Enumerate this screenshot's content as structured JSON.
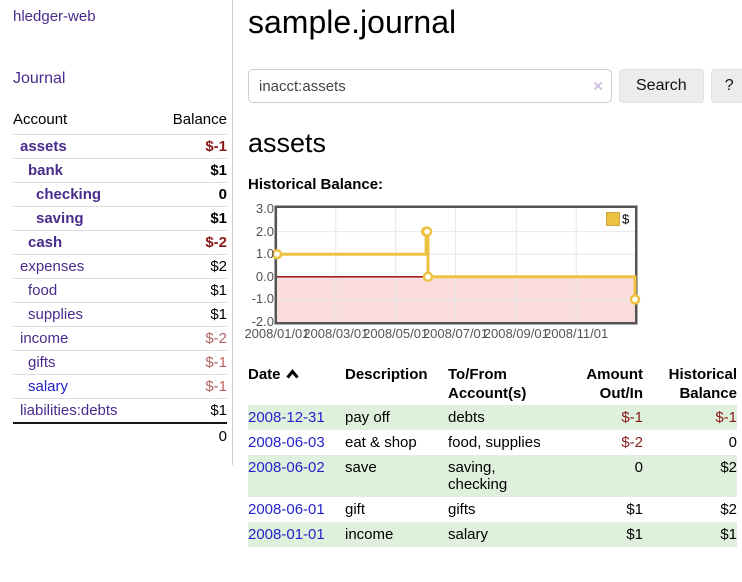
{
  "app": {
    "title_link": "hledger-web"
  },
  "sidebar": {
    "journal_link": "Journal",
    "accounts": {
      "account_header": "Account",
      "balance_header": "Balance",
      "rows": [
        {
          "name": "assets",
          "indent": 1,
          "bold": true,
          "link_style": "purple",
          "balance": "$-1",
          "balance_style": "negative",
          "balance_bold": true
        },
        {
          "name": "bank",
          "indent": 2,
          "bold": true,
          "link_style": "purple",
          "balance": "$1",
          "balance_style": "normal",
          "balance_bold": true
        },
        {
          "name": "checking",
          "indent": 3,
          "bold": true,
          "link_style": "purple",
          "balance": "0",
          "balance_style": "normal",
          "balance_bold": true
        },
        {
          "name": "saving",
          "indent": 3,
          "bold": true,
          "link_style": "purple",
          "balance": "$1",
          "balance_style": "normal",
          "balance_bold": true
        },
        {
          "name": "cash",
          "indent": 2,
          "bold": true,
          "link_style": "purple",
          "balance": "$-2",
          "balance_style": "negative",
          "balance_bold": true
        },
        {
          "name": "expenses",
          "indent": 1,
          "bold": false,
          "link_style": "purple",
          "balance": "$2",
          "balance_style": "normal",
          "balance_bold": false
        },
        {
          "name": "food",
          "indent": 2,
          "bold": false,
          "link_style": "purple",
          "balance": "$1",
          "balance_style": "normal",
          "balance_bold": false
        },
        {
          "name": "supplies",
          "indent": 2,
          "bold": false,
          "link_style": "purple",
          "balance": "$1",
          "balance_style": "normal",
          "balance_bold": false
        },
        {
          "name": "income",
          "indent": 1,
          "bold": false,
          "link_style": "purple",
          "balance": "$-2",
          "balance_style": "negative-muted",
          "balance_bold": false
        },
        {
          "name": "gifts",
          "indent": 2,
          "bold": false,
          "link_style": "purple",
          "balance": "$-1",
          "balance_style": "negative-muted",
          "balance_bold": false
        },
        {
          "name": "salary",
          "indent": 2,
          "bold": false,
          "link_style": "blue",
          "balance": "$-1",
          "balance_style": "negative-muted",
          "balance_bold": false
        },
        {
          "name": "liabilities:debts",
          "indent": 1,
          "bold": false,
          "link_style": "purple",
          "balance": "$1",
          "balance_style": "normal",
          "balance_bold": false
        }
      ],
      "total": "0"
    }
  },
  "header": {
    "title": "sample.journal"
  },
  "search": {
    "value": "inacct:assets",
    "clear_icon": "×",
    "search_button": "Search",
    "help_button": "?"
  },
  "content": {
    "account_heading": "assets",
    "chart_heading": "Historical Balance:"
  },
  "chart_data": {
    "type": "line",
    "step": true,
    "title": "Historical Balance",
    "legend": {
      "position": "top-right",
      "entries": [
        {
          "label": "$",
          "color": "#edc240"
        }
      ]
    },
    "series": [
      {
        "name": "$",
        "color": "#edc240",
        "points": [
          [
            "2008-01-01",
            1
          ],
          [
            "2008-06-01",
            2
          ],
          [
            "2008-06-02",
            2
          ],
          [
            "2008-06-03",
            0
          ],
          [
            "2008-12-31",
            -1
          ]
        ]
      }
    ],
    "xlim": [
      "2008-01-01",
      "2008-12-31"
    ],
    "ylim": [
      -2,
      3
    ],
    "x_ticks": [
      {
        "date": "2008-01-01",
        "label": "2008/01/01"
      },
      {
        "date": "2008-03-01",
        "label": "2008/03/01"
      },
      {
        "date": "2008-05-01",
        "label": "2008/05/01"
      },
      {
        "date": "2008-07-01",
        "label": "2008/07/01"
      },
      {
        "date": "2008-09-01",
        "label": "2008/09/01"
      },
      {
        "date": "2008-11-01",
        "label": "2008/11/01"
      }
    ],
    "y_ticks": [
      {
        "value": 3,
        "label": "3.0"
      },
      {
        "value": 2,
        "label": "2.0"
      },
      {
        "value": 1,
        "label": "1.0"
      },
      {
        "value": 0,
        "label": "0.0"
      },
      {
        "value": -1,
        "label": "-1.0"
      },
      {
        "value": -2,
        "label": "-2.0"
      }
    ],
    "grid": true,
    "negative_region_shaded": true,
    "negative_region_color": "#fadcdc",
    "zero_line_color": "#8b0000",
    "border_color": "#545454"
  },
  "register": {
    "columns": [
      {
        "label": "Date",
        "align": "left",
        "sort": "asc"
      },
      {
        "label": "Description",
        "align": "left"
      },
      {
        "label": "To/From\nAccount(s)",
        "align": "left"
      },
      {
        "label": "Amount\nOut/In",
        "align": "right"
      },
      {
        "label": "Historical\nBalance",
        "align": "right"
      }
    ],
    "rows": [
      {
        "date": "2008-12-31",
        "description": "pay off",
        "accounts": "debts",
        "amount": "$-1",
        "amount_negative": true,
        "balance": "$-1",
        "balance_negative": true,
        "highlight": true
      },
      {
        "date": "2008-06-03",
        "description": "eat & shop",
        "accounts": "food, supplies",
        "amount": "$-2",
        "amount_negative": true,
        "balance": "0",
        "balance_negative": false,
        "highlight": false
      },
      {
        "date": "2008-06-02",
        "description": "save",
        "accounts": "saving,\nchecking",
        "amount": "0",
        "amount_negative": false,
        "balance": "$2",
        "balance_negative": false,
        "highlight": true
      },
      {
        "date": "2008-06-01",
        "description": "gift",
        "accounts": "gifts",
        "amount": "$1",
        "amount_negative": false,
        "balance": "$2",
        "balance_negative": false,
        "highlight": false
      },
      {
        "date": "2008-01-01",
        "description": "income",
        "accounts": "salary",
        "amount": "$1",
        "amount_negative": false,
        "balance": "$1",
        "balance_negative": false,
        "highlight": true
      }
    ]
  },
  "colors": {
    "link_purple": "#4a2b8c",
    "link_blue": "#2323cc",
    "negative": "#8b1a1a",
    "negative_muted": "#b56363",
    "row_highlight": "#dff0dd",
    "chart_line": "#edc240",
    "chart_negative_region": "#fadcdc",
    "chart_zero_line": "#8b0000"
  }
}
